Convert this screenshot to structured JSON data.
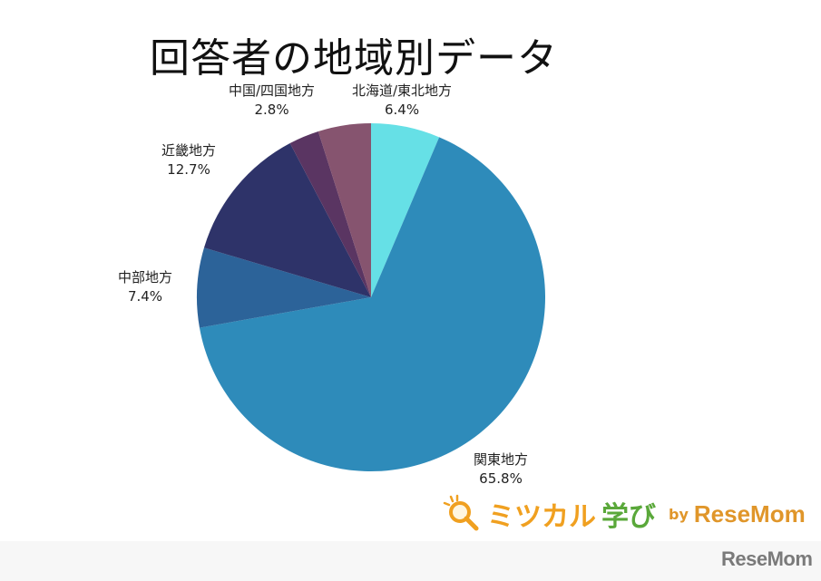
{
  "chart_data": {
    "type": "pie",
    "title": "回答者の地域別データ",
    "start_angle_deg": 0,
    "direction": "clockwise",
    "slices": [
      {
        "label": "北海道/東北地方",
        "value": 6.4,
        "display": "6.4%",
        "color": "#66e0e6"
      },
      {
        "label": "関東地方",
        "value": 65.8,
        "display": "65.8%",
        "color": "#2e8bba"
      },
      {
        "label": "中部地方",
        "value": 7.4,
        "display": "7.4%",
        "color": "#2c6399"
      },
      {
        "label": "近畿地方",
        "value": 12.7,
        "display": "12.7%",
        "color": "#2e3369"
      },
      {
        "label": "中国/四国地方",
        "value": 2.8,
        "display": "2.8%",
        "color": "#5a3562"
      },
      {
        "label": "",
        "value": 4.9,
        "display": "",
        "color": "#86546f"
      }
    ],
    "legend": "none (direct labels)"
  },
  "title": "回答者の地域別データ",
  "labels": {
    "tohoku": {
      "name": "北海道/東北地方",
      "pct": "6.4%"
    },
    "kanto": {
      "name": "関東地方",
      "pct": "65.8%"
    },
    "chubu": {
      "name": "中部地方",
      "pct": "7.4%"
    },
    "kinki": {
      "name": "近畿地方",
      "pct": "12.7%"
    },
    "chugoku": {
      "name": "中国/四国地方",
      "pct": "2.8%"
    }
  },
  "brand": {
    "katakana": "ミツカル",
    "kanji": "学び",
    "by": "by",
    "resemom": "ReseMom"
  },
  "watermark": "ReseMom"
}
